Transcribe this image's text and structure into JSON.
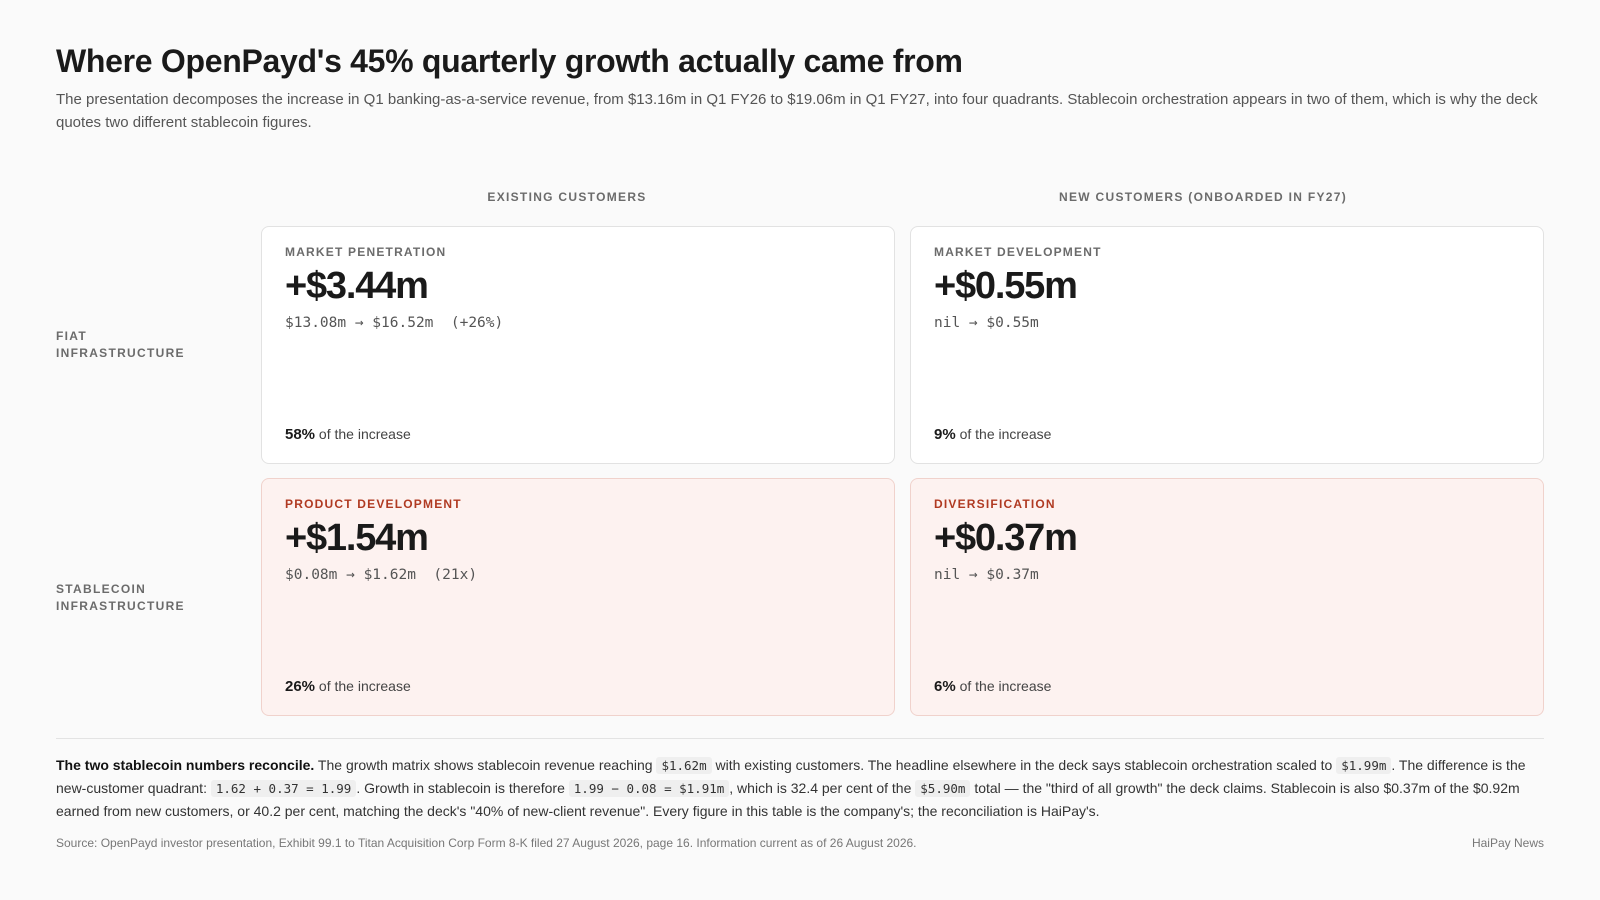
{
  "title": "Where OpenPayd's 45% quarterly growth actually came from",
  "subtitle": "The presentation decomposes the increase in Q1 banking-as-a-service revenue, from $13.16m in Q1 FY26 to $19.06m in Q1 FY27, into four quadrants. Stablecoin orchestration appears in two of them, which is why the deck quotes two different stablecoin figures.",
  "chart_data": {
    "type": "table",
    "columns": [
      "EXISTING CUSTOMERS",
      "NEW CUSTOMERS (ONBOARDED IN FY27)"
    ],
    "rows": [
      "FIAT INFRASTRUCTURE",
      "STABLECOIN INFRASTRUCTURE"
    ],
    "quadrants": [
      {
        "row": 0,
        "col": 0,
        "label": "MARKET PENETRATION",
        "value": "+$3.44m",
        "delta_m": 3.44,
        "range": "$13.08m → $16.52m  (+26%)",
        "share_pct": 58,
        "share_text": "58%",
        "share_suffix": "of the increase",
        "highlight": false
      },
      {
        "row": 0,
        "col": 1,
        "label": "MARKET DEVELOPMENT",
        "value": "+$0.55m",
        "delta_m": 0.55,
        "range": "nil → $0.55m",
        "share_pct": 9,
        "share_text": "9%",
        "share_suffix": "of the increase",
        "highlight": false
      },
      {
        "row": 1,
        "col": 0,
        "label": "PRODUCT DEVELOPMENT",
        "value": "+$1.54m",
        "delta_m": 1.54,
        "range": "$0.08m → $1.62m  (21x)",
        "share_pct": 26,
        "share_text": "26%",
        "share_suffix": "of the increase",
        "highlight": true
      },
      {
        "row": 1,
        "col": 1,
        "label": "DIVERSIFICATION",
        "value": "+$0.37m",
        "delta_m": 0.37,
        "range": "nil → $0.37m",
        "share_pct": 6,
        "share_text": "6%",
        "share_suffix": "of the increase",
        "highlight": true
      }
    ]
  },
  "note": {
    "lead": "The two stablecoin numbers reconcile.",
    "t1": " The growth matrix shows stablecoin revenue reaching ",
    "c1": "$1.62m",
    "t2": " with existing customers. The headline elsewhere in the deck says stablecoin orchestration scaled to ",
    "c2": "$1.99m",
    "t3": ". The difference is the new-customer quadrant: ",
    "c3": "1.62 + 0.37 = 1.99",
    "t4": ". Growth in stablecoin is therefore ",
    "c4": "1.99 − 0.08 = $1.91m",
    "t5": ", which is 32.4 per cent of the ",
    "c5": "$5.90m",
    "t6": " total — the \"third of all growth\" the deck claims. Stablecoin is also $0.37m of the $0.92m earned from new customers, or 40.2 per cent, matching the deck's \"40% of new-client revenue\". Every figure in this table is the company's; the reconciliation is HaiPay's."
  },
  "source": "Source: OpenPayd investor presentation, Exhibit 99.1 to Titan Acquisition Corp Form 8-K filed 27 August 2026, page 16. Information current as of 26 August 2026.",
  "publisher": "HaiPay News"
}
